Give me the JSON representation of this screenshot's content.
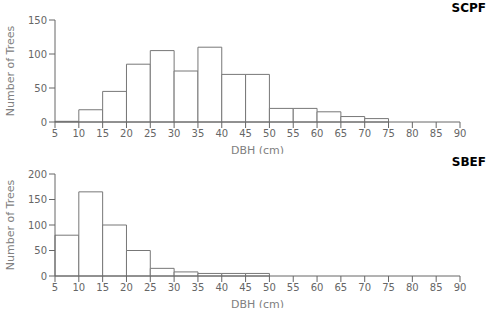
{
  "chart_data": [
    {
      "type": "histogram",
      "title": "SCPF",
      "bins": [
        5,
        10,
        15,
        20,
        25,
        30,
        35,
        40,
        45,
        50,
        55,
        60,
        65,
        70,
        75,
        80,
        85,
        90
      ],
      "values": [
        1,
        18,
        45,
        85,
        105,
        75,
        110,
        70,
        70,
        20,
        20,
        15,
        8,
        5,
        0,
        0,
        0
      ],
      "xlim": [
        5,
        90
      ],
      "xticks": [
        5,
        10,
        15,
        20,
        25,
        30,
        35,
        40,
        45,
        50,
        55,
        60,
        65,
        70,
        75,
        80,
        85,
        90
      ],
      "ylim": [
        0,
        150
      ],
      "yticks": [
        0,
        50,
        100,
        150
      ],
      "xlabel": "DBH (cm)",
      "ylabel": "Number of Trees",
      "color": "#777777"
    },
    {
      "type": "histogram",
      "title": "SBEF",
      "bins": [
        5,
        10,
        15,
        20,
        25,
        30,
        35,
        40,
        45,
        50,
        55,
        60,
        65,
        70,
        75,
        80,
        85,
        90
      ],
      "values": [
        80,
        165,
        100,
        50,
        15,
        8,
        5,
        5,
        5,
        0,
        0,
        0,
        0,
        0,
        0,
        0,
        0
      ],
      "xlim": [
        5,
        90
      ],
      "xticks": [
        5,
        10,
        15,
        20,
        25,
        30,
        35,
        40,
        45,
        50,
        55,
        60,
        65,
        70,
        75,
        80,
        85,
        90
      ],
      "ylim": [
        0,
        200
      ],
      "yticks": [
        0,
        50,
        100,
        150,
        200
      ],
      "xlabel": "DBH (cm)",
      "ylabel": "Number of Trees",
      "color": "#777777"
    }
  ]
}
